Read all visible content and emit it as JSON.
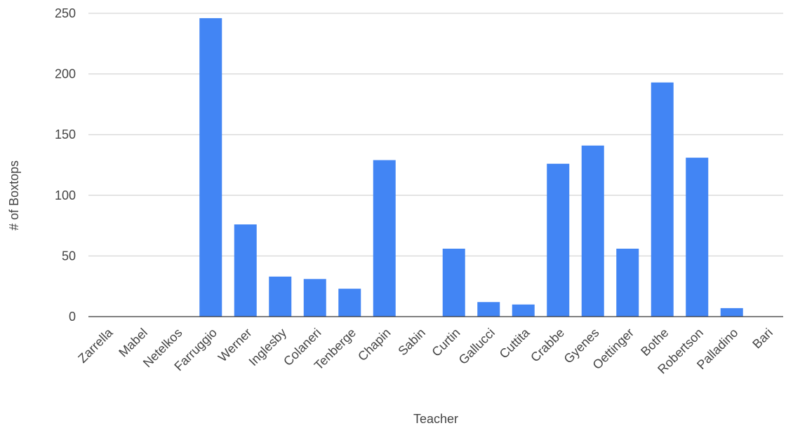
{
  "chart_data": {
    "type": "bar",
    "title": "",
    "xlabel": "Teacher",
    "ylabel": "# of Boxtops",
    "ylim": [
      0,
      250
    ],
    "yticks": [
      0,
      50,
      100,
      150,
      200,
      250
    ],
    "grid": true,
    "legend": "none",
    "color": "#4285F4",
    "categories": [
      "Zarrella",
      "Mabel",
      "Netelkos",
      "Farruggio",
      "Werner",
      "Inglesby",
      "Colaneri",
      "Tenberge",
      "Chapin",
      "Sabin",
      "Curtin",
      "Gallucci",
      "Cuttita",
      "Crabbe",
      "Gyenes",
      "Oettinger",
      "Bothe",
      "Robertson",
      "Palladino",
      "Bari"
    ],
    "values": [
      0,
      0,
      0,
      246,
      76,
      33,
      31,
      23,
      129,
      0,
      56,
      12,
      10,
      126,
      141,
      56,
      193,
      131,
      7,
      0
    ]
  }
}
